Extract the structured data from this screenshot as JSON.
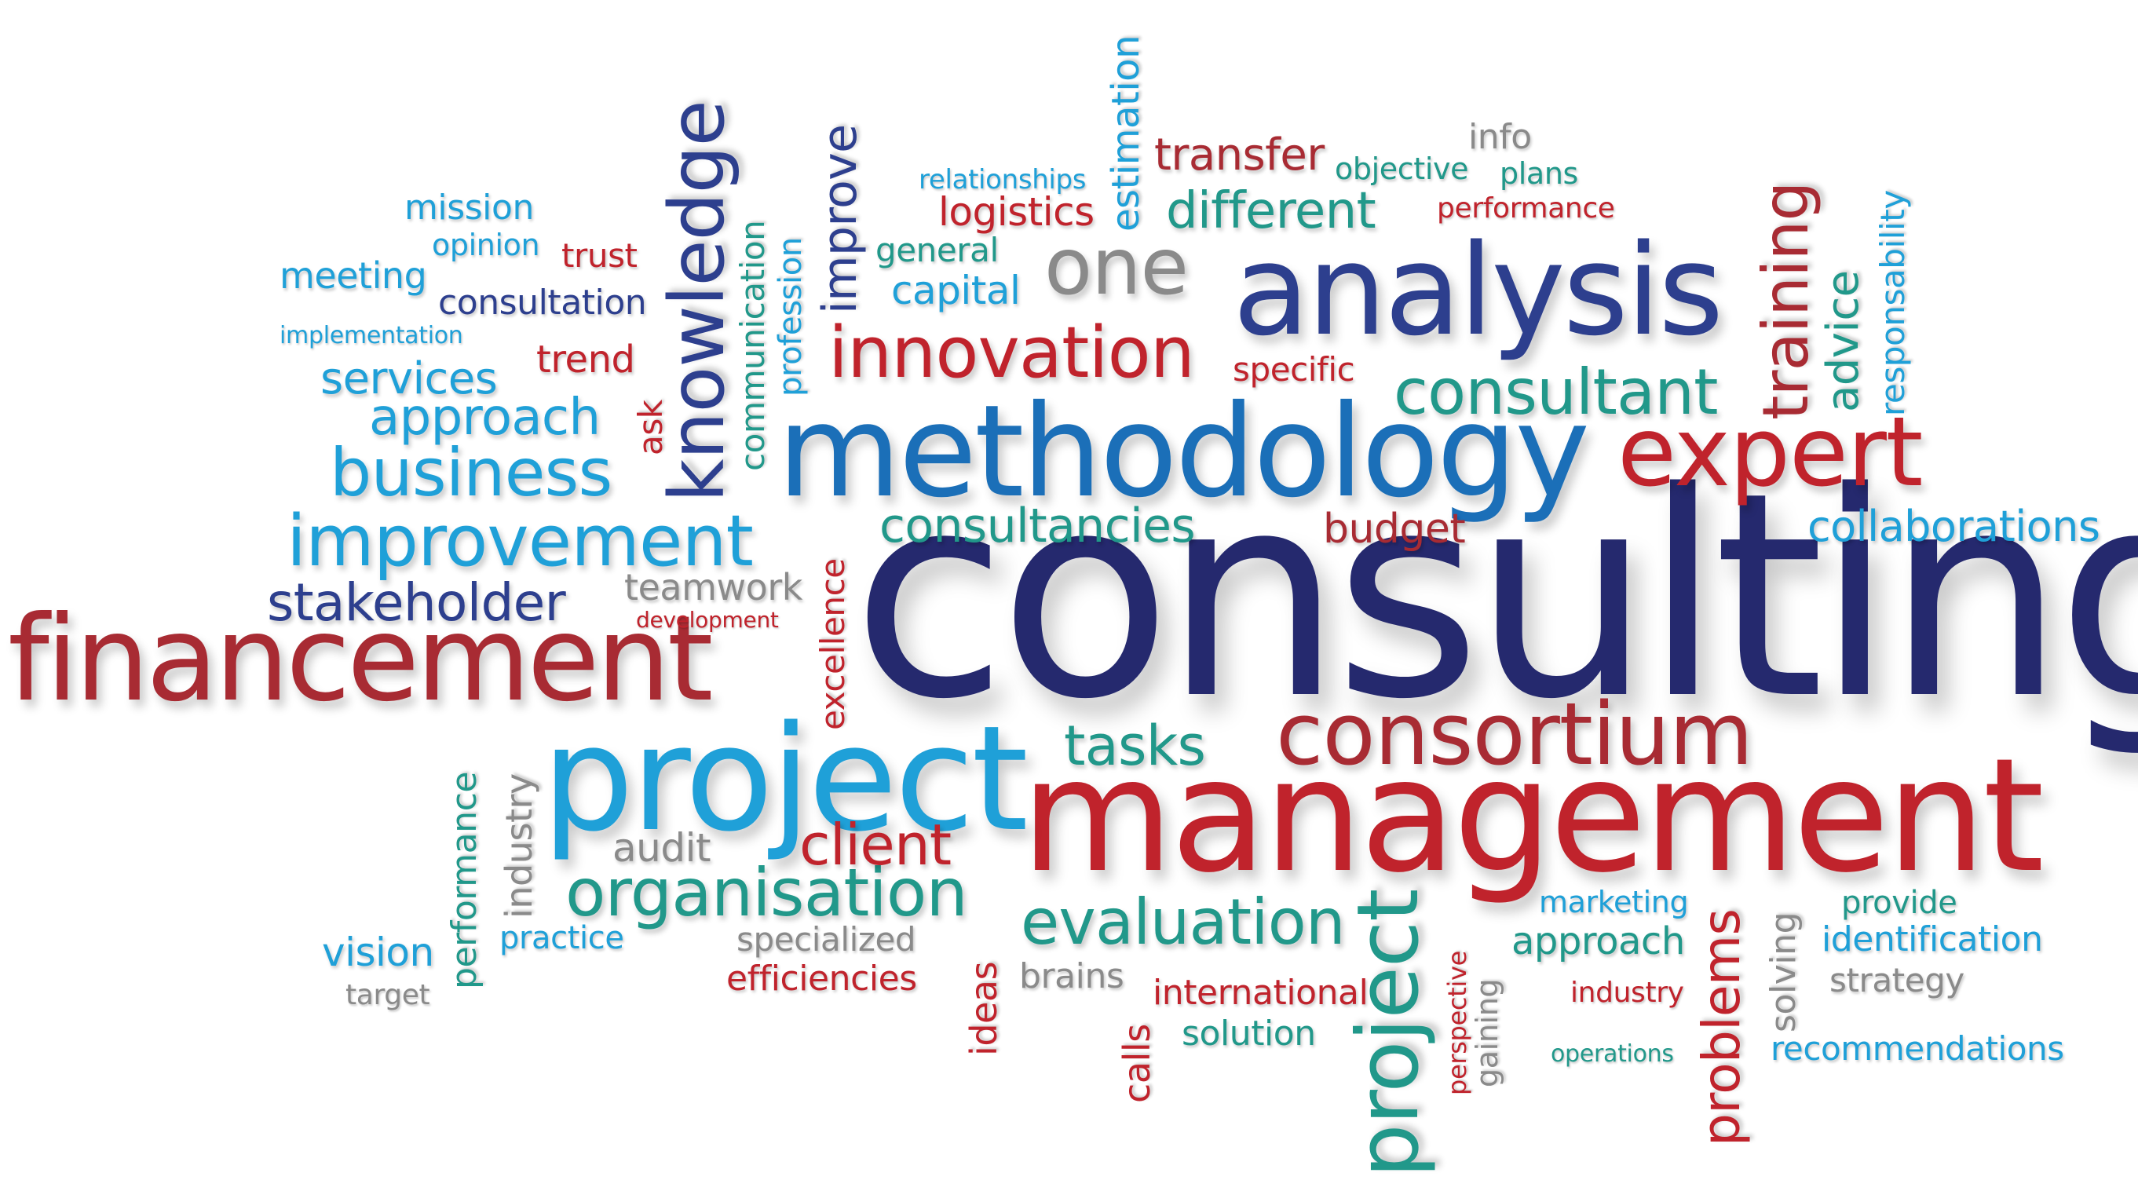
{
  "colors": {
    "navy": "#25296e",
    "blue": "#1b6fb8",
    "sky": "#1fa0d8",
    "teal": "#21988a",
    "red": "#c0232c",
    "grey": "#8a8a8a",
    "background": "#ffffff"
  },
  "words": {
    "consulting": "consulting",
    "management": "management",
    "project_big": "project",
    "financement": "financement",
    "methodology": "methodology",
    "analysis": "analysis",
    "expert": "expert",
    "consortium": "consortium",
    "knowledge": "knowledge",
    "improvement": "improvement",
    "business": "business",
    "innovation": "innovation",
    "consultant": "consultant",
    "training": "training",
    "organisation": "organisation",
    "evaluation": "evaluation",
    "project_vertical": "project",
    "one": "one",
    "stakeholder": "stakeholder",
    "approach_top": "approach",
    "services": "services",
    "consultancies": "consultancies",
    "collaborations": "collaborations",
    "client": "client",
    "tasks": "tasks",
    "different": "different",
    "transfer": "transfer",
    "logistics": "logistics",
    "estimation": "estimation",
    "improve": "improve",
    "communication": "communication",
    "profession": "profession",
    "mission": "mission",
    "opinion": "opinion",
    "trust": "trust",
    "meeting": "meeting",
    "consultation": "consultation",
    "implementation": "implementation",
    "trend": "trend",
    "ask": "ask",
    "relationships": "relationships",
    "general": "general",
    "capital": "capital",
    "info": "info",
    "objective": "objective",
    "plans": "plans",
    "performance_top": "performance",
    "specific": "specific",
    "advice": "advice",
    "responsability": "responsability",
    "budget": "budget",
    "teamwork": "teamwork",
    "development": "development",
    "excellence": "excellence",
    "performance_vertical": "performance",
    "industry_vertical": "industry",
    "audit": "audit",
    "practice": "practice",
    "vision": "vision",
    "target": "target",
    "specialized": "specialized",
    "efficiencies": "efficiencies",
    "ideas": "ideas",
    "brains": "brains",
    "calls": "calls",
    "international": "international",
    "solution": "solution",
    "perspective": "perspective",
    "gaining": "gaining",
    "marketing": "marketing",
    "approach_bottom": "approach",
    "industry_bottom": "industry",
    "operations": "operations",
    "problems": "problems",
    "solving": "solving",
    "provide": "provide",
    "identification": "identification",
    "strategy": "strategy",
    "recommendations": "recommendations"
  }
}
